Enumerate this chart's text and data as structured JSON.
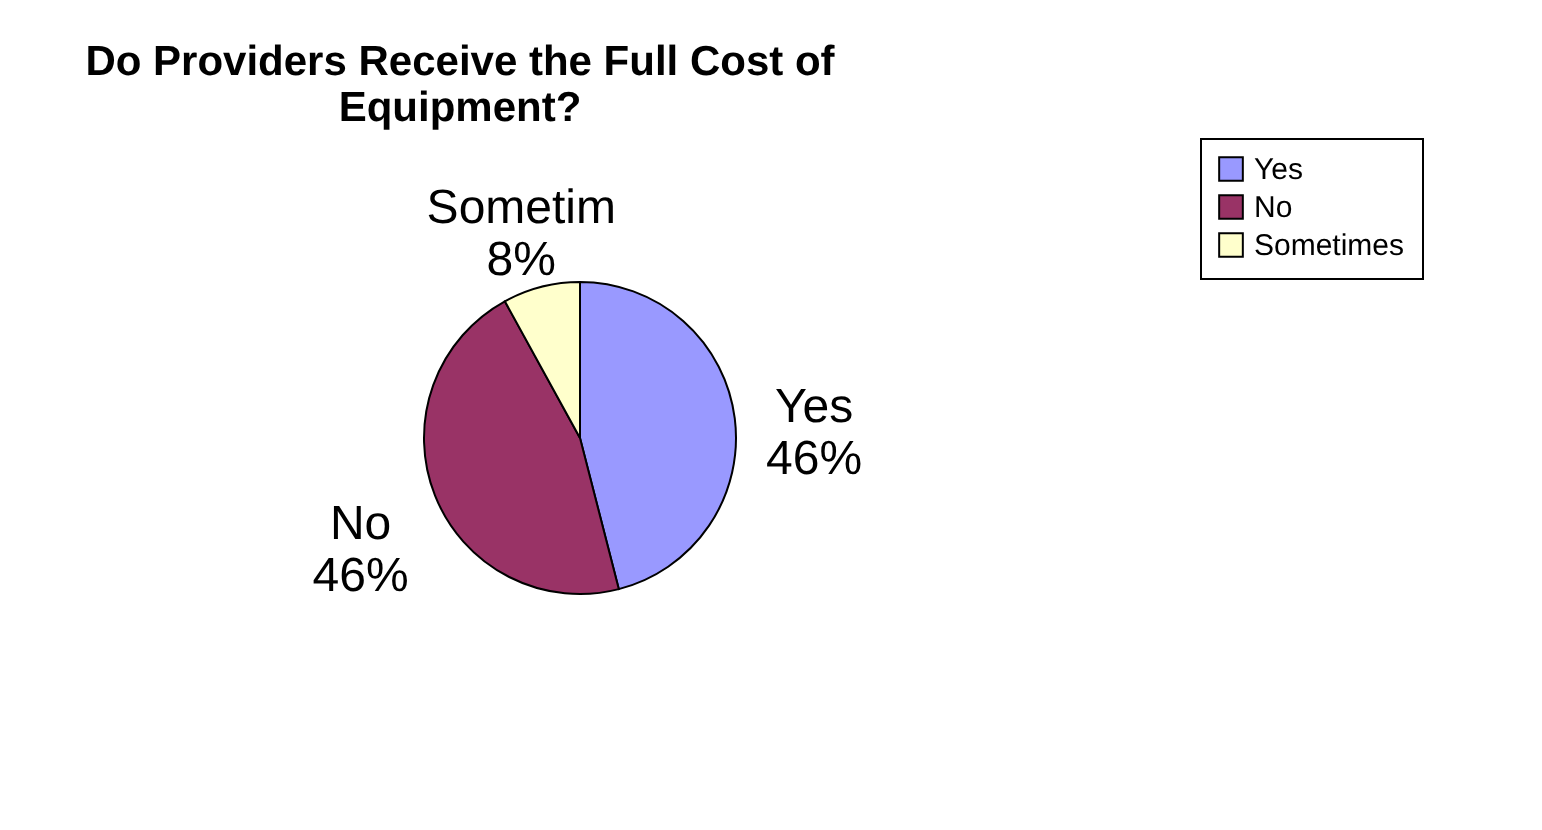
{
  "chart_data": {
    "type": "pie",
    "title": "Do Providers Receive the Full Cost of Equipment?",
    "categories": [
      "Yes",
      "No",
      "Sometimes"
    ],
    "values": [
      46,
      46,
      8
    ],
    "colors": [
      "#9999ff",
      "#993366",
      "#ffffcc"
    ],
    "value_labels": [
      "Yes\n46%",
      "No\n46%",
      "Sometim\n8%"
    ],
    "legend": "right"
  }
}
